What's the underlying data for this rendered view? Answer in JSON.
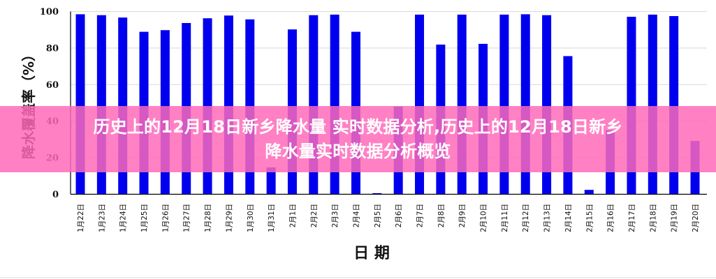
{
  "chart_data": {
    "type": "bar",
    "xlabel": "日 期",
    "ylabel": "降水覆盖率（%）",
    "ylim": [
      0,
      100
    ],
    "yticks": [
      0,
      20,
      40,
      60,
      80,
      100
    ],
    "grid": true,
    "bar_color": "#0000ee",
    "categories": [
      "1月22日",
      "1月23日",
      "1月24日",
      "1月25日",
      "1月26日",
      "1月27日",
      "1月28日",
      "1月29日",
      "1月30日",
      "1月31日",
      "2月1日",
      "2月2日",
      "2月3日",
      "2月4日",
      "2月5日",
      "2月6日",
      "2月7日",
      "2月8日",
      "2月9日",
      "2月10日",
      "2月11日",
      "2月12日",
      "2月13日",
      "2月14日",
      "2月15日",
      "2月16日",
      "2月17日",
      "2月18日",
      "2月19日",
      "2月20日"
    ],
    "values": [
      98.5,
      98,
      96.7,
      88.9,
      89.8,
      93.7,
      96.3,
      97.8,
      95.7,
      14.7,
      90.2,
      98,
      98.3,
      88.9,
      0.6,
      48,
      98.3,
      81.9,
      98.3,
      82.3,
      98.3,
      98.5,
      98,
      75.6,
      2.4,
      35,
      97.1,
      98.3,
      97.5,
      29.2
    ]
  },
  "banner": {
    "line1": "历史上的12月18日新乡降水量 实时数据分析,历史上的12月18日新乡",
    "line2": "降水量实时数据分析概览",
    "color": "#ff69b9"
  }
}
